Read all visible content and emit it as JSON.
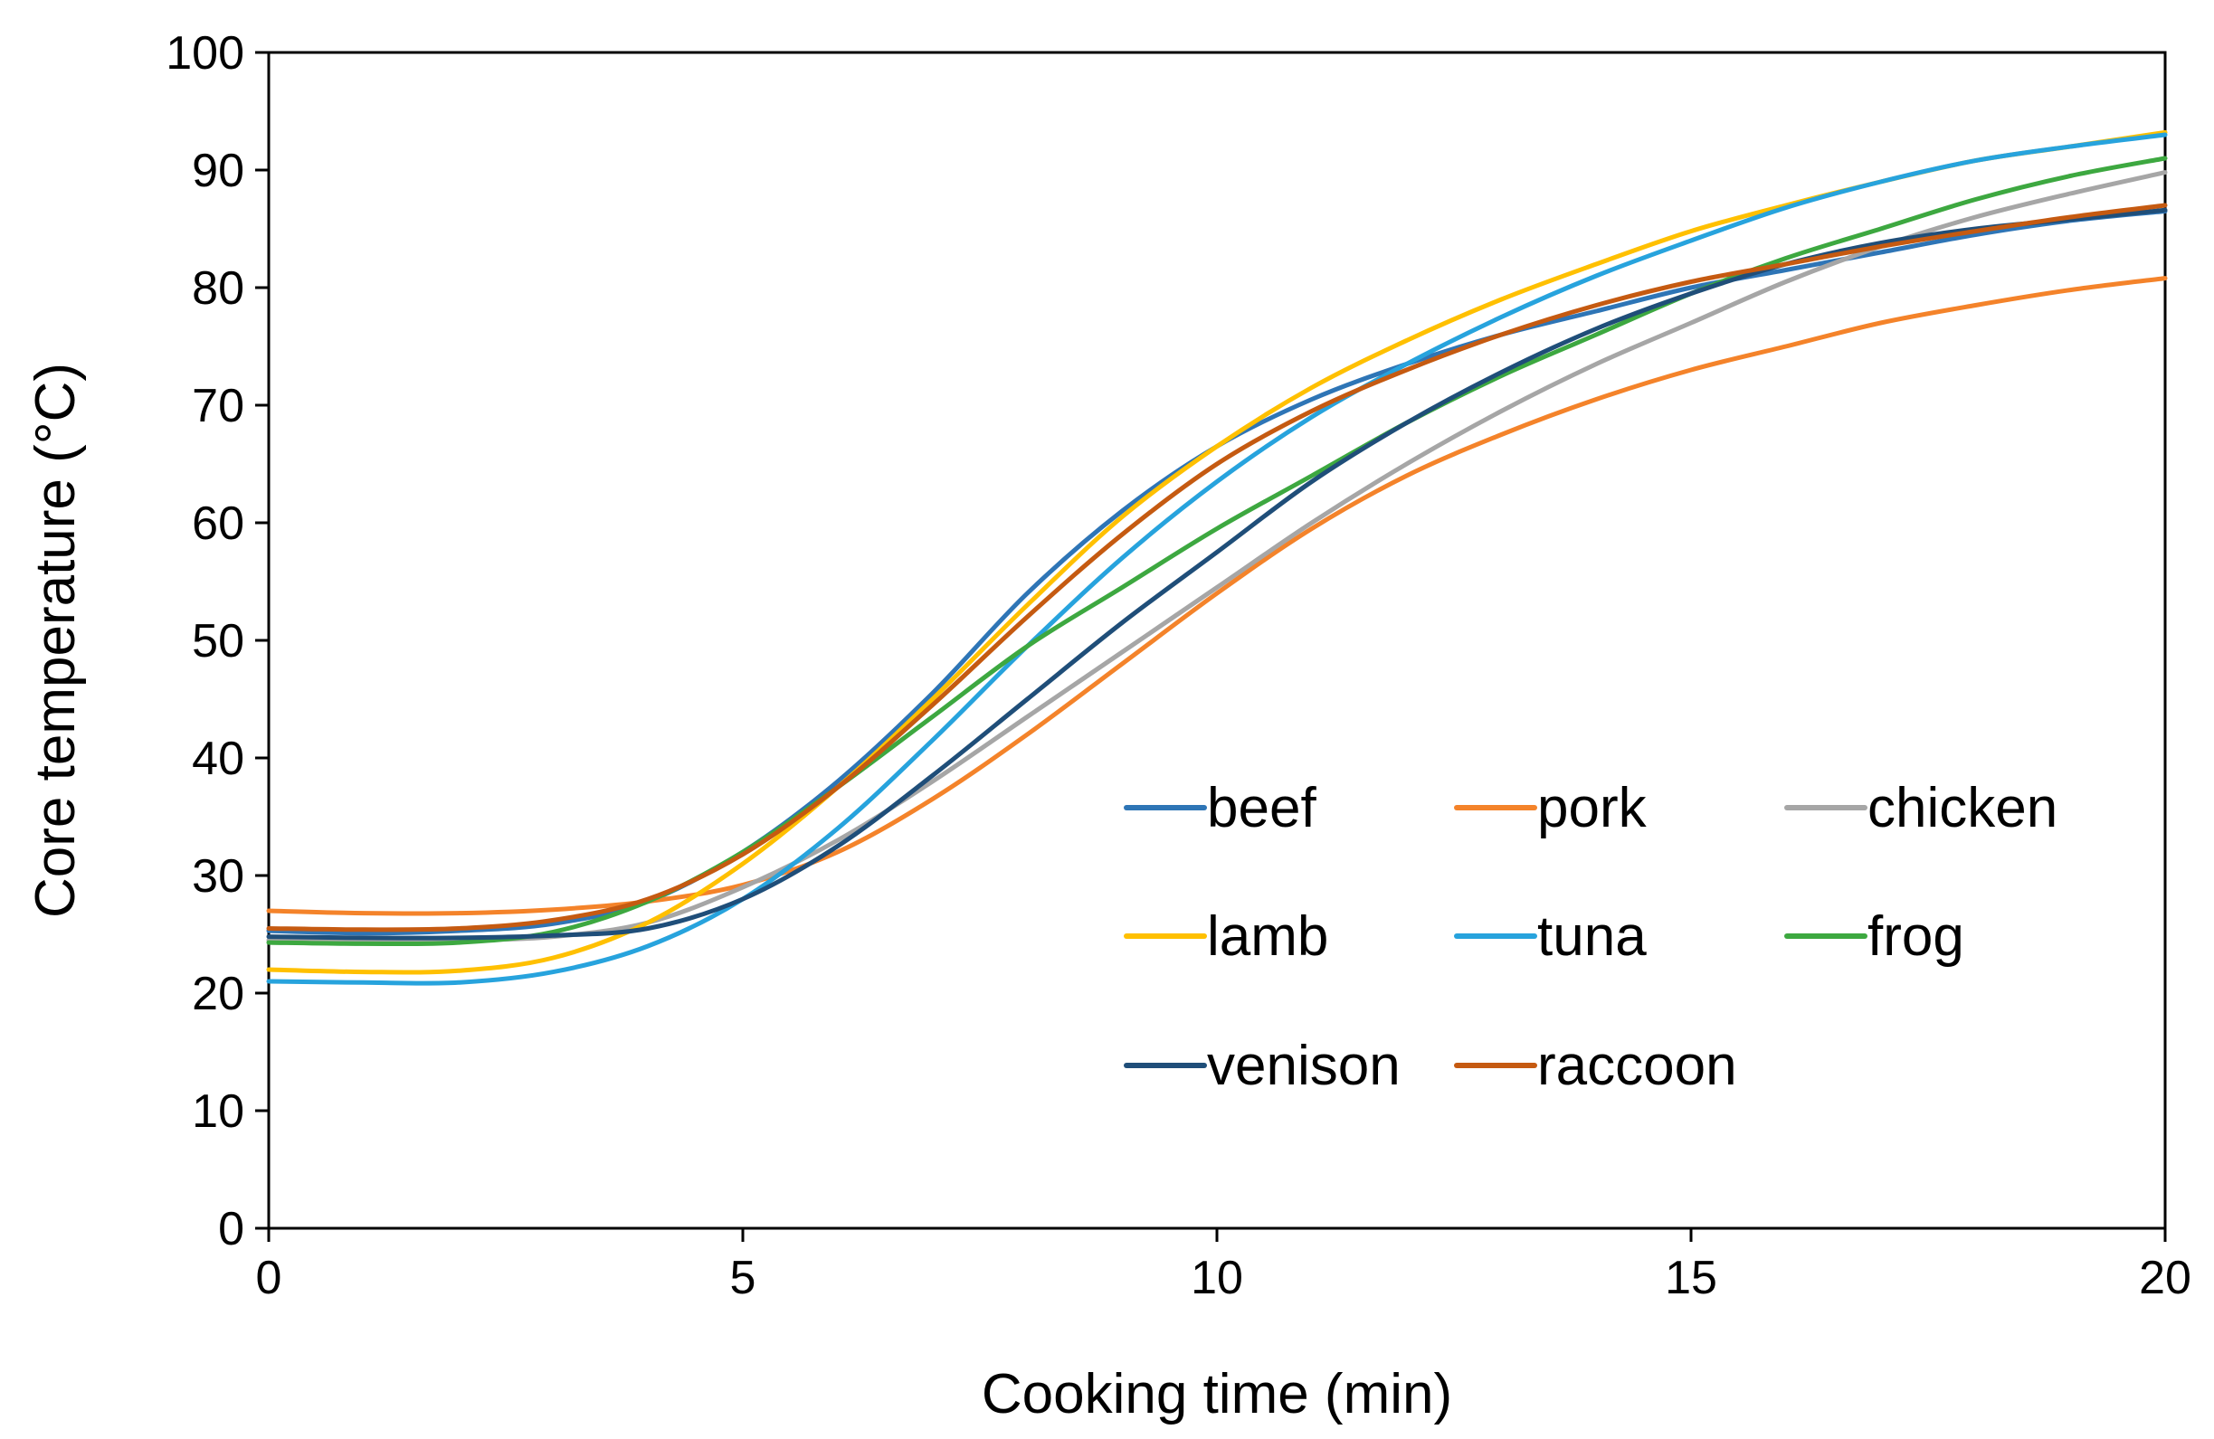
{
  "chart_data": {
    "type": "line",
    "title": "",
    "xlabel": "Cooking time (min)",
    "ylabel": "Core temperature (°C)",
    "xlim": [
      0,
      20
    ],
    "ylim": [
      0,
      100
    ],
    "x_ticks": [
      0,
      5,
      10,
      15,
      20
    ],
    "y_ticks": [
      0,
      10,
      20,
      30,
      40,
      50,
      60,
      70,
      80,
      90,
      100
    ],
    "grid": false,
    "legend_position": "inside-right",
    "x": [
      0,
      1,
      2,
      3,
      4,
      5,
      6,
      7,
      8,
      9,
      10,
      11,
      12,
      13,
      14,
      15,
      16,
      17,
      18,
      19,
      20
    ],
    "series": [
      {
        "name": "beef",
        "color": "#2e75b6",
        "values": [
          25.3,
          25.1,
          25.3,
          25.9,
          27.8,
          32.0,
          38.0,
          45.5,
          54.0,
          61.0,
          66.5,
          70.5,
          73.5,
          76.0,
          78.0,
          80.0,
          81.5,
          83.0,
          84.5,
          85.7,
          86.5
        ]
      },
      {
        "name": "pork",
        "color": "#f4832a",
        "values": [
          27.0,
          26.8,
          26.8,
          27.1,
          27.8,
          29.2,
          32.0,
          36.5,
          42.0,
          48.0,
          54.0,
          59.5,
          64.0,
          67.5,
          70.5,
          73.0,
          75.0,
          77.0,
          78.5,
          79.8,
          80.8
        ]
      },
      {
        "name": "chicken",
        "color": "#a6a6a6",
        "values": [
          24.5,
          24.5,
          24.5,
          24.8,
          26.0,
          29.0,
          33.0,
          38.0,
          43.5,
          49.0,
          54.5,
          60.0,
          65.0,
          69.5,
          73.5,
          77.0,
          80.5,
          83.5,
          86.0,
          88.0,
          89.8
        ]
      },
      {
        "name": "lamb",
        "color": "#ffc000",
        "values": [
          22.0,
          21.8,
          21.9,
          23.0,
          26.0,
          31.0,
          37.5,
          45.0,
          53.0,
          60.5,
          66.5,
          71.5,
          75.5,
          79.0,
          82.0,
          84.8,
          87.0,
          89.0,
          90.8,
          92.0,
          93.2
        ]
      },
      {
        "name": "tuna",
        "color": "#27a3dd",
        "values": [
          21.0,
          20.9,
          20.9,
          21.8,
          24.0,
          28.0,
          34.0,
          41.5,
          49.5,
          57.0,
          63.5,
          69.0,
          73.5,
          77.5,
          81.0,
          84.0,
          86.8,
          89.0,
          90.8,
          92.0,
          93.0
        ]
      },
      {
        "name": "frog",
        "color": "#3da840",
        "values": [
          24.3,
          24.2,
          24.3,
          25.2,
          27.8,
          32.0,
          37.5,
          43.5,
          49.5,
          54.5,
          59.5,
          64.0,
          68.5,
          72.5,
          76.0,
          79.5,
          82.5,
          85.0,
          87.5,
          89.5,
          91.0
        ]
      },
      {
        "name": "venison",
        "color": "#1f4e79",
        "values": [
          24.8,
          24.7,
          24.7,
          24.9,
          25.5,
          28.0,
          32.5,
          38.5,
          45.0,
          51.5,
          57.5,
          63.5,
          68.5,
          72.8,
          76.5,
          79.5,
          82.0,
          83.8,
          85.0,
          85.8,
          86.6
        ]
      },
      {
        "name": "raccoon",
        "color": "#c55a11",
        "values": [
          25.5,
          25.4,
          25.5,
          26.2,
          28.0,
          31.8,
          37.5,
          44.5,
          52.0,
          59.0,
          65.0,
          69.5,
          73.0,
          76.0,
          78.5,
          80.5,
          82.0,
          83.5,
          84.8,
          86.0,
          87.0
        ]
      }
    ]
  }
}
